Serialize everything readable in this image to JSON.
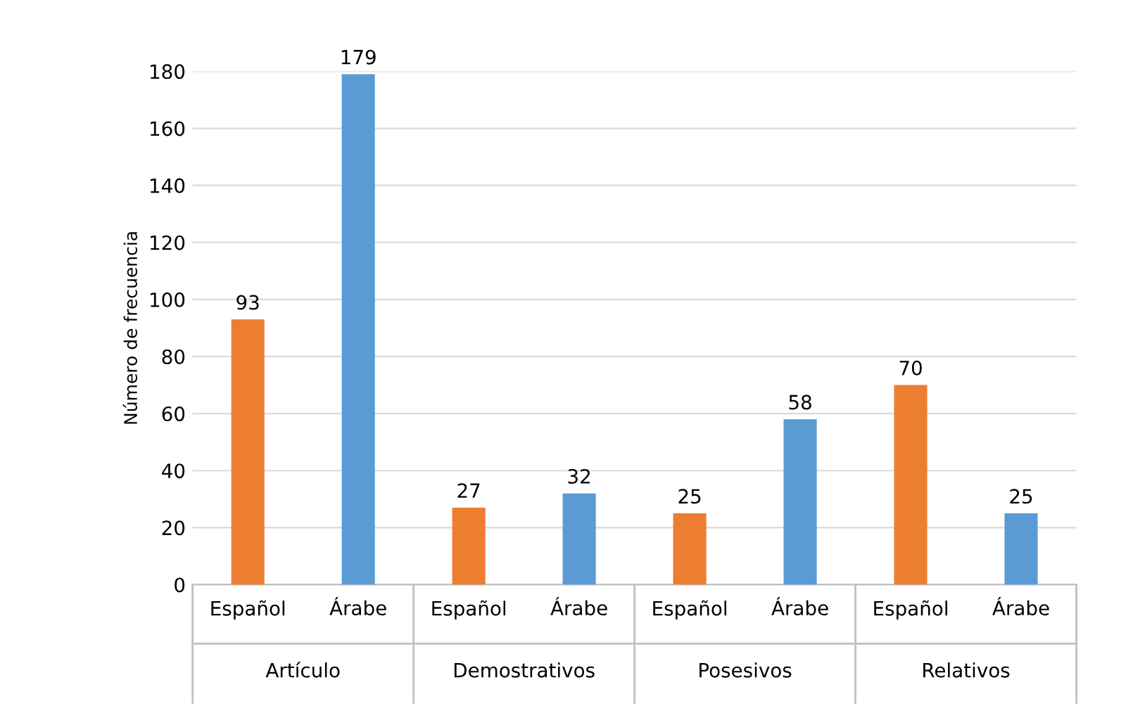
{
  "chart_data": {
    "type": "bar",
    "ylabel": "Número de frecuencia",
    "categories": [
      "Español",
      "Árabe",
      "Español",
      "Árabe",
      "Español",
      "Árabe",
      "Español",
      "Árabe"
    ],
    "values": [
      93,
      179,
      27,
      32,
      25,
      58,
      70,
      25
    ],
    "colors": [
      "#ed7d31",
      "#5b9bd5",
      "#ed7d31",
      "#5b9bd5",
      "#ed7d31",
      "#5b9bd5",
      "#ed7d31",
      "#5b9bd5"
    ],
    "ylim": [
      0,
      180
    ],
    "yticks": [
      0,
      20,
      40,
      60,
      80,
      100,
      120,
      140,
      160,
      180
    ],
    "grid": "y",
    "data_labels": true,
    "annotations": [
      "Artículo",
      "Demostrativos",
      "Posesivos",
      "Relativos"
    ]
  }
}
